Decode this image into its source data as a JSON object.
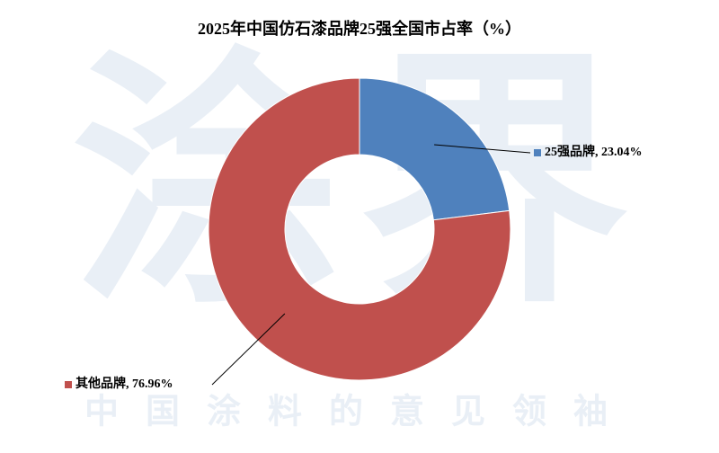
{
  "chart_data": {
    "type": "donut",
    "title": "2025年中国仿石漆品牌25强全国市占率（%）",
    "categories": [
      "25强品牌",
      "其他品牌"
    ],
    "values": [
      23.04,
      76.96
    ],
    "value_labels": [
      "25强品牌, 23.04%",
      "其他品牌, 76.96%"
    ],
    "colors": [
      "#4f81bd",
      "#c0504d"
    ],
    "watermark": "涂界",
    "watermark_slogan": "中国涂料的意见领袖"
  }
}
